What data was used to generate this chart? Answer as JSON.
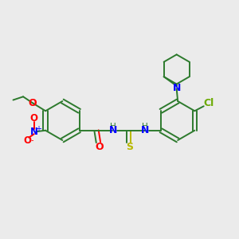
{
  "background_color": "#ebebeb",
  "bond_color": "#2d7a2d",
  "N_color": "#0000ff",
  "O_color": "#ff0000",
  "S_color": "#b8b800",
  "Cl_color": "#6aaa00",
  "figsize": [
    3.0,
    3.0
  ],
  "dpi": 100,
  "xlim": [
    0,
    10
  ],
  "ylim": [
    0,
    10
  ]
}
